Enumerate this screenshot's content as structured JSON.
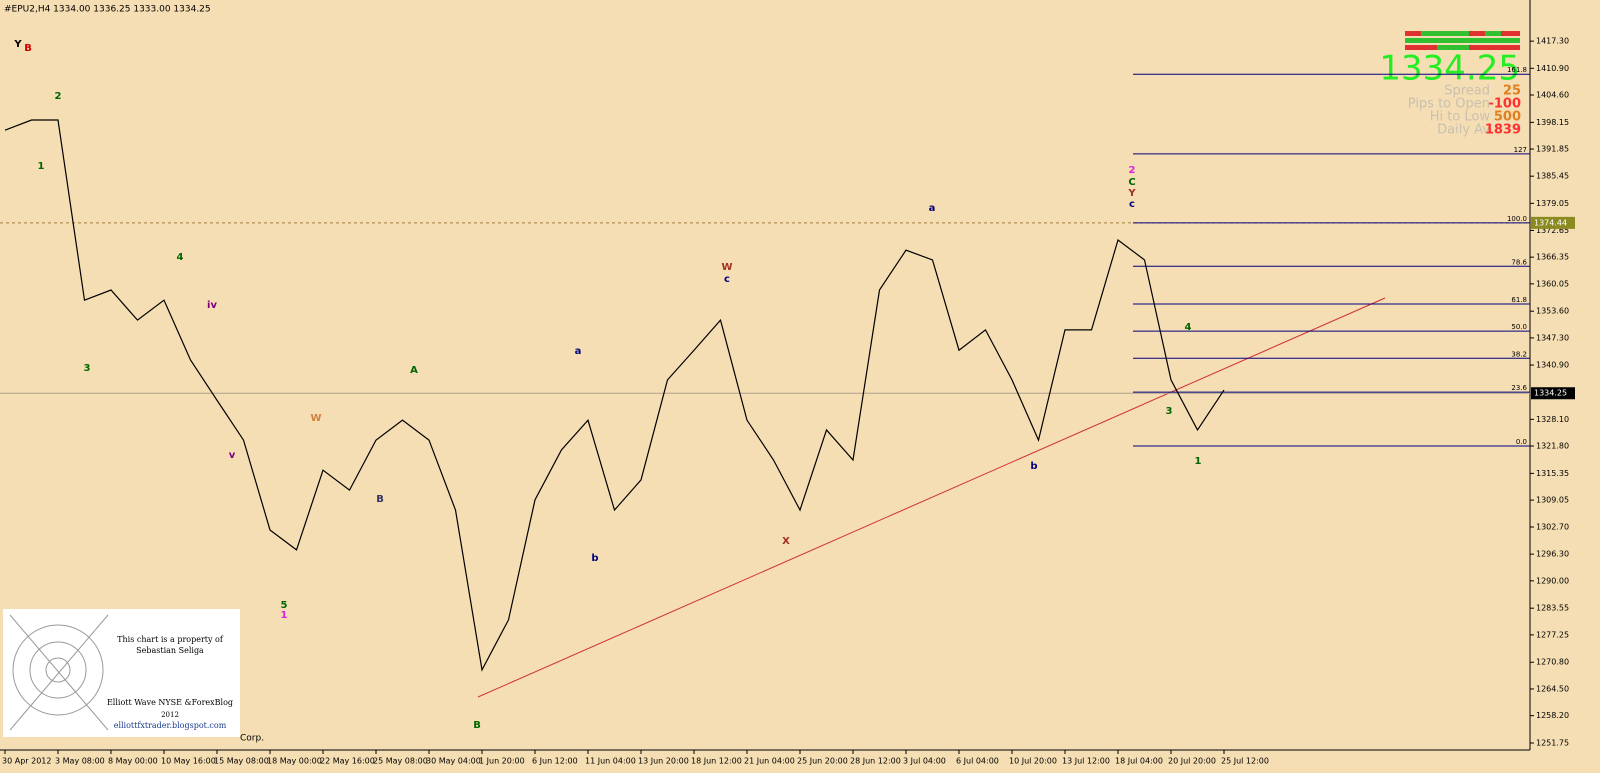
{
  "chart_data": {
    "type": "line",
    "title": "#EPU2,H4  1334.00 1336.25 1333.00 1334.25",
    "background": "#f5deb3",
    "categories": [
      "30 Apr 2012",
      null,
      "3 May 08:00",
      null,
      "8 May 00:00",
      null,
      "10 May 16:00",
      null,
      "15 May 08:00",
      null,
      "18 May 00:00",
      null,
      "22 May 16:00",
      null,
      "25 May 08:00",
      null,
      "30 May 04:00",
      null,
      "1 Jun 20:00",
      null,
      "6 Jun 12:00",
      null,
      "11 Jun 04:00",
      null,
      "13 Jun 20:00",
      null,
      "18 Jun 12:00",
      null,
      "21 Jun 04:00",
      null,
      "25 Jun 20:00",
      null,
      "28 Jun 12:00",
      null,
      "3 Jul 04:00",
      null,
      "6 Jul 04:00",
      null,
      "10 Jul 20:00",
      null,
      "13 Jul 12:00",
      null,
      "18 Jul 04:00",
      null,
      "20 Jul 20:00",
      null,
      "25 Jul 12:00"
    ],
    "series": [
      {
        "color": "#000000",
        "values": [
          1396.3,
          1398.7,
          1398.7,
          1356.2,
          1358.6,
          1351.5,
          1356.2,
          1342.1,
          1332.6,
          1323.2,
          1302.0,
          1297.3,
          1316.1,
          1311.4,
          1323.2,
          1327.9,
          1323.2,
          1306.7,
          1269.0,
          1280.8,
          1309.1,
          1320.9,
          1327.9,
          1306.7,
          1313.8,
          1337.4,
          1344.4,
          1351.5,
          1327.9,
          1318.5,
          1306.7,
          1325.6,
          1318.5,
          1358.6,
          1368.0,
          1365.7,
          1344.4,
          1349.2,
          1337.4,
          1323.2,
          1349.2,
          1349.2,
          1370.4,
          1365.7,
          1337.4,
          1325.6,
          1335.0
        ]
      }
    ],
    "ylim": [
      1250.1,
      1426.3
    ],
    "yticks": [
      {
        "value": 1417.3,
        "label": "1417.30"
      },
      {
        "value": 1410.9,
        "label": "1410.90"
      },
      {
        "value": 1404.6,
        "label": "1404.60"
      },
      1398.15,
      {
        "value": 1391.85,
        "label": "1391.85"
      },
      {
        "value": 1385.45,
        "label": "1385.45"
      },
      {
        "value": 1379.05,
        "label": "1379.05"
      },
      {
        "value": 1372.65,
        "label": "1372.65"
      },
      {
        "value": 1366.35,
        "label": "1366.35"
      },
      {
        "value": 1360.05,
        "label": "1360.05"
      },
      {
        "value": 1353.6,
        "label": "1353.60"
      },
      {
        "value": 1347.3,
        "label": "1347.30"
      },
      {
        "value": 1340.9,
        "label": "1340.90"
      },
      {
        "value": 1328.1,
        "label": "1328.10"
      },
      {
        "value": 1321.8,
        "label": "1321.80"
      },
      {
        "value": 1315.35,
        "label": "1315.35"
      },
      {
        "value": 1309.05,
        "label": "1309.05"
      },
      {
        "value": 1302.7,
        "label": "1302.70"
      },
      {
        "value": 1296.3,
        "label": "1296.30"
      },
      {
        "value": 1290.0,
        "label": "1290.00"
      },
      {
        "value": 1283.55,
        "label": "1283.55"
      },
      {
        "value": 1277.25,
        "label": "1277.25"
      },
      {
        "value": 1270.8,
        "label": "1270.80"
      },
      {
        "value": 1264.5,
        "label": "1264.50"
      },
      {
        "value": 1258.2,
        "label": "1258.20"
      },
      {
        "value": 1251.75,
        "label": "1251.75"
      }
    ],
    "fib_levels": [
      {
        "label": "161.8",
        "value": 1409.5
      },
      {
        "label": "127",
        "value": 1390.7
      },
      {
        "label": "100.0",
        "value": 1374.44
      },
      {
        "label": "78.6",
        "value": 1364.2
      },
      {
        "label": "61.8",
        "value": 1355.3
      },
      {
        "label": "50.0",
        "value": 1348.9
      },
      {
        "label": "38.2",
        "value": 1342.5
      },
      {
        "label": "23.6",
        "value": 1334.5
      },
      {
        "label": "0.0",
        "value": 1321.8
      }
    ],
    "level_marker": 1374.44,
    "last": 1334.25,
    "panel": [
      {
        "label": "Spread",
        "value": 25
      },
      {
        "label": "Pips to Open",
        "value": -100
      },
      {
        "label": "Hi to Low",
        "value": 500
      },
      {
        "label": "Daily Av",
        "value": 1839
      }
    ],
    "wave_labels": [
      "Y",
      "B",
      "2",
      "1",
      "4",
      "3",
      "iv",
      "v",
      "W",
      "5",
      "1",
      "A",
      "B",
      "B",
      "a",
      "b",
      "W",
      "c",
      "X",
      "a",
      "b",
      "2",
      "C",
      "Y",
      "c",
      "1",
      "3",
      "4"
    ],
    "watermark": {
      "line1": "This chart is a property of",
      "line2": "Sebastian Seliga",
      "line3": "Elliott Wave NYSE &ForexBlog",
      "line4": "2012",
      "line5": "elliottfxtrader.blogspot.com"
    },
    "corner_text": "Corp."
  }
}
